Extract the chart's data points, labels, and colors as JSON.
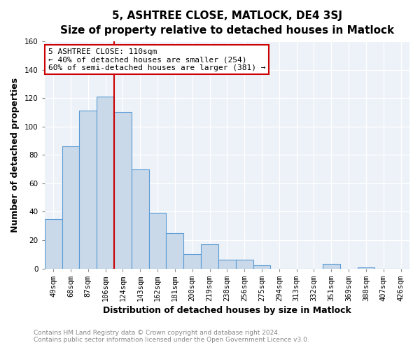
{
  "title": "5, ASHTREE CLOSE, MATLOCK, DE4 3SJ",
  "subtitle": "Size of property relative to detached houses in Matlock",
  "xlabel": "Distribution of detached houses by size in Matlock",
  "ylabel": "Number of detached properties",
  "bar_labels": [
    "49sqm",
    "68sqm",
    "87sqm",
    "106sqm",
    "124sqm",
    "143sqm",
    "162sqm",
    "181sqm",
    "200sqm",
    "219sqm",
    "238sqm",
    "256sqm",
    "275sqm",
    "294sqm",
    "313sqm",
    "332sqm",
    "351sqm",
    "369sqm",
    "388sqm",
    "407sqm",
    "426sqm"
  ],
  "bar_values": [
    35,
    86,
    111,
    121,
    110,
    70,
    39,
    25,
    10,
    17,
    6,
    6,
    2,
    0,
    0,
    0,
    3,
    0,
    1,
    0,
    0
  ],
  "bar_color": "#c9d9ea",
  "bar_edge_color": "#5b9bd5",
  "vline_x": 3.5,
  "vline_color": "#cc0000",
  "annotation_title": "5 ASHTREE CLOSE: 110sqm",
  "annotation_line1": "← 40% of detached houses are smaller (254)",
  "annotation_line2": "60% of semi-detached houses are larger (381) →",
  "annotation_box_color": "#ffffff",
  "annotation_box_edge": "#cc0000",
  "ylim": [
    0,
    160
  ],
  "yticks": [
    0,
    20,
    40,
    60,
    80,
    100,
    120,
    140,
    160
  ],
  "footer1": "Contains HM Land Registry data © Crown copyright and database right 2024.",
  "footer2": "Contains public sector information licensed under the Open Government Licence v3.0.",
  "bg_color": "#ffffff",
  "plot_bg_color": "#edf2f9",
  "grid_color": "#ffffff",
  "title_fontsize": 11,
  "subtitle_fontsize": 9.5,
  "tick_fontsize": 7.5,
  "label_fontsize": 9,
  "footer_fontsize": 6.5,
  "annotation_fontsize": 8
}
